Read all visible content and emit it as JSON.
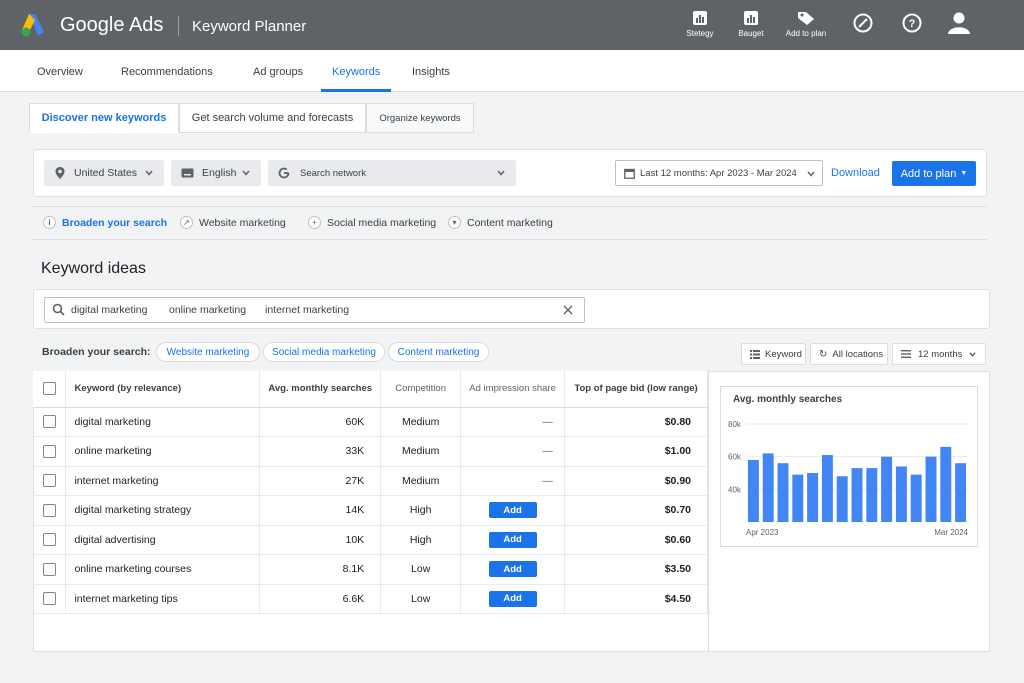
{
  "app": {
    "brand": "Google Ads",
    "product": "Keyword Planner",
    "accent": "#1a73e8"
  },
  "topbar": {
    "items": [
      {
        "label": "Stetegy",
        "icon": "bar-chart-icon"
      },
      {
        "label": "Bauget",
        "icon": "bar-chart-icon"
      },
      {
        "label": "Add to plan",
        "icon": "tag-icon"
      }
    ],
    "icons": [
      "compass-icon",
      "help-icon",
      "account-icon"
    ]
  },
  "nav": {
    "tabs": [
      "Overview",
      "Recommendations",
      "Ad groups",
      "Keywords",
      "Insights"
    ],
    "active": "Keywords"
  },
  "subtabs": [
    "Discover new keywords",
    "Get search volume and forecasts",
    "Organize keywords"
  ],
  "filters": {
    "location": "United States",
    "language": "English",
    "network": "Search network",
    "date_range": "Last 12 months: Apr 2023 - Mar 2024",
    "download": "Download",
    "add_to_plan": "Add to plan"
  },
  "broaden_chips": [
    "Broaden your search",
    "Website marketing",
    "Social media marketing",
    "Content marketing"
  ],
  "section_title": "Keyword ideas",
  "search": {
    "terms": [
      "digital marketing",
      "online marketing",
      "internet marketing"
    ]
  },
  "broaden_row": {
    "label": "Broaden your search:",
    "pills": [
      "Website marketing",
      "Social media marketing",
      "Content marketing"
    ]
  },
  "options": {
    "keyword": "Keyword",
    "locations": "All locations",
    "months": "12 months"
  },
  "table": {
    "headers": [
      "Keyword (by relevance)",
      "Avg. monthly searches",
      "Competition",
      "Ad impression share",
      "Top of page bid (low range)"
    ],
    "add_label": "Add",
    "rows": [
      {
        "keyword": "digital marketing",
        "searches": "60K",
        "competition": "Medium",
        "share": "—",
        "bid": "$0.80"
      },
      {
        "keyword": "online marketing",
        "searches": "33K",
        "competition": "Medium",
        "share": "—",
        "bid": "$1.00"
      },
      {
        "keyword": "internet marketing",
        "searches": "27K",
        "competition": "Medium",
        "share": "—",
        "bid": "$0.90"
      },
      {
        "keyword": "digital marketing strategy",
        "searches": "14K",
        "competition": "High",
        "share": "Add",
        "bid": "$0.70"
      },
      {
        "keyword": "digital advertising",
        "searches": "10K",
        "competition": "High",
        "share": "Add",
        "bid": "$0.60"
      },
      {
        "keyword": "online marketing courses",
        "searches": "8.1K",
        "competition": "Low",
        "share": "Add",
        "bid": "$3.50"
      },
      {
        "keyword": "internet marketing tips",
        "searches": "6.6K",
        "competition": "Low",
        "share": "Add",
        "bid": "$4.50"
      }
    ]
  },
  "chart_data": {
    "type": "bar",
    "title": "Avg. monthly searches",
    "y_ticks": [
      "80k",
      "60k",
      "40k"
    ],
    "x_labels": [
      "Apr 2023",
      "Mar 2024"
    ],
    "ylim": [
      20000,
      80000
    ],
    "values": [
      58000,
      62000,
      56000,
      49000,
      50000,
      61000,
      48000,
      53000,
      53000,
      60000,
      54000,
      49000,
      60000,
      66000,
      56000
    ],
    "color": "#4285f4"
  }
}
